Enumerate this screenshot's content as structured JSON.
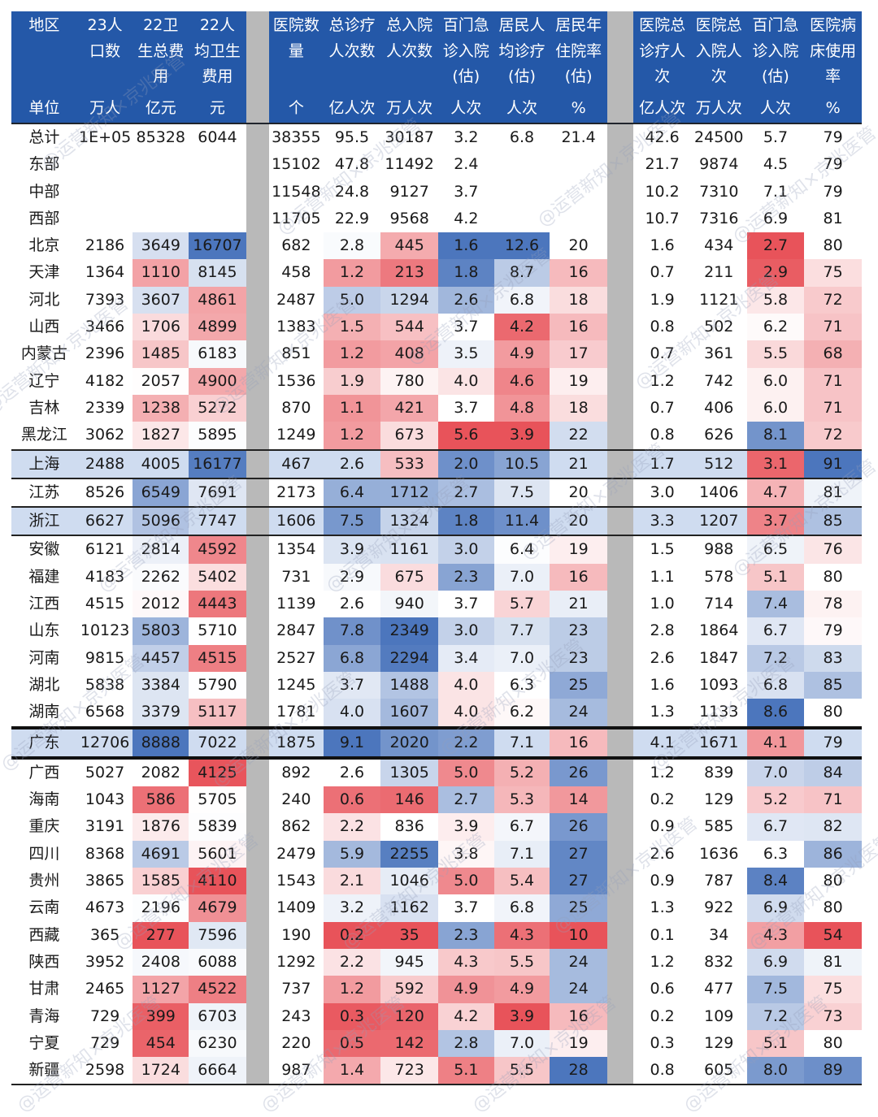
{
  "headers": [
    {
      "label": "地区",
      "unit": "单位"
    },
    {
      "label": "23人口数",
      "unit": "万人"
    },
    {
      "label": "22卫生总费用",
      "unit": "亿元"
    },
    {
      "label": "22人均卫生费用",
      "unit": "元"
    },
    {
      "label": "",
      "unit": ""
    },
    {
      "label": "医院数量",
      "unit": "个"
    },
    {
      "label": "总诊疗人次数",
      "unit": "亿人次"
    },
    {
      "label": "总入院人次数",
      "unit": "万人次"
    },
    {
      "label": "百门急诊入院(估)",
      "unit": "人次"
    },
    {
      "label": "居民人均诊疗(估)",
      "unit": "人次"
    },
    {
      "label": "居民年住院率(估)",
      "unit": "%"
    },
    {
      "label": "",
      "unit": ""
    },
    {
      "label": "医院总诊疗人次",
      "unit": "亿人次"
    },
    {
      "label": "医院总入院人次",
      "unit": "万人次"
    },
    {
      "label": "百门急诊入院(估)",
      "unit": "人次"
    },
    {
      "label": "医院病床使用率",
      "unit": "%"
    }
  ],
  "rows": [
    {
      "region": "总计",
      "v": [
        "1E+05",
        "85328",
        "6044",
        "38355",
        "95.5",
        "30187",
        "3.2",
        "6.8",
        "21.4",
        "42.6",
        "24500",
        "5.7",
        "79"
      ]
    },
    {
      "region": "东部",
      "v": [
        "",
        "",
        "",
        "15102",
        "47.8",
        "11492",
        "2.4",
        "",
        "",
        "21.7",
        "9874",
        "4.5",
        "79"
      ]
    },
    {
      "region": "中部",
      "v": [
        "",
        "",
        "",
        "11548",
        "24.8",
        "9127",
        "3.7",
        "",
        "",
        "10.2",
        "7310",
        "7.1",
        "79"
      ]
    },
    {
      "region": "西部",
      "v": [
        "",
        "",
        "",
        "11705",
        "22.9",
        "9568",
        "4.2",
        "",
        "",
        "10.7",
        "7316",
        "6.9",
        "81"
      ]
    },
    {
      "region": "北京",
      "v": [
        "2186",
        "3649",
        "16707",
        "682",
        "2.8",
        "445",
        "1.6",
        "12.6",
        "20",
        "1.6",
        "434",
        "2.7",
        "80"
      ]
    },
    {
      "region": "天津",
      "v": [
        "1364",
        "1110",
        "8145",
        "458",
        "1.2",
        "213",
        "1.8",
        "8.7",
        "16",
        "0.7",
        "211",
        "2.9",
        "75"
      ]
    },
    {
      "region": "河北",
      "v": [
        "7393",
        "3607",
        "4861",
        "2487",
        "5.0",
        "1294",
        "2.6",
        "6.8",
        "18",
        "1.9",
        "1121",
        "5.8",
        "72"
      ]
    },
    {
      "region": "山西",
      "v": [
        "3466",
        "1706",
        "4899",
        "1383",
        "1.5",
        "544",
        "3.7",
        "4.2",
        "16",
        "0.8",
        "502",
        "6.2",
        "71"
      ]
    },
    {
      "region": "内蒙古",
      "v": [
        "2396",
        "1485",
        "6183",
        "851",
        "1.2",
        "408",
        "3.5",
        "4.9",
        "17",
        "0.7",
        "361",
        "5.5",
        "68"
      ]
    },
    {
      "region": "辽宁",
      "v": [
        "4182",
        "2057",
        "4900",
        "1536",
        "1.9",
        "780",
        "4.0",
        "4.6",
        "19",
        "1.2",
        "742",
        "6.0",
        "71"
      ]
    },
    {
      "region": "吉林",
      "v": [
        "2339",
        "1238",
        "5272",
        "870",
        "1.1",
        "421",
        "3.7",
        "4.8",
        "18",
        "0.7",
        "406",
        "6.0",
        "71"
      ]
    },
    {
      "region": "黑龙江",
      "v": [
        "3062",
        "1827",
        "5895",
        "1249",
        "1.2",
        "673",
        "5.6",
        "3.9",
        "22",
        "0.8",
        "626",
        "8.1",
        "72"
      ]
    },
    {
      "region": "上海",
      "v": [
        "2488",
        "4005",
        "16177",
        "467",
        "2.6",
        "533",
        "2.0",
        "10.5",
        "21",
        "1.7",
        "512",
        "3.1",
        "91"
      ]
    },
    {
      "region": "江苏",
      "v": [
        "8526",
        "6549",
        "7691",
        "2173",
        "6.4",
        "1712",
        "2.7",
        "7.5",
        "20",
        "3.0",
        "1406",
        "4.7",
        "81"
      ]
    },
    {
      "region": "浙江",
      "v": [
        "6627",
        "5096",
        "7747",
        "1606",
        "7.5",
        "1324",
        "1.8",
        "11.4",
        "20",
        "3.3",
        "1207",
        "3.7",
        "85"
      ]
    },
    {
      "region": "安徽",
      "v": [
        "6121",
        "2814",
        "4592",
        "1354",
        "3.9",
        "1161",
        "3.0",
        "6.4",
        "19",
        "1.5",
        "988",
        "6.5",
        "76"
      ]
    },
    {
      "region": "福建",
      "v": [
        "4183",
        "2262",
        "5402",
        "731",
        "2.9",
        "675",
        "2.3",
        "7.0",
        "16",
        "1.1",
        "578",
        "5.1",
        "80"
      ]
    },
    {
      "region": "江西",
      "v": [
        "4515",
        "2012",
        "4443",
        "1139",
        "2.6",
        "940",
        "3.7",
        "5.7",
        "21",
        "1.0",
        "714",
        "7.4",
        "78"
      ]
    },
    {
      "region": "山东",
      "v": [
        "10123",
        "5803",
        "5710",
        "2847",
        "7.8",
        "2349",
        "3.0",
        "7.7",
        "23",
        "2.8",
        "1864",
        "6.7",
        "79"
      ]
    },
    {
      "region": "河南",
      "v": [
        "9815",
        "4457",
        "4515",
        "2527",
        "6.8",
        "2294",
        "3.4",
        "7.0",
        "23",
        "2.6",
        "1847",
        "7.2",
        "83"
      ]
    },
    {
      "region": "湖北",
      "v": [
        "5838",
        "3384",
        "5790",
        "1245",
        "3.7",
        "1488",
        "4.0",
        "6.3",
        "25",
        "1.6",
        "1093",
        "6.8",
        "85"
      ]
    },
    {
      "region": "湖南",
      "v": [
        "6568",
        "3379",
        "5117",
        "1781",
        "4.0",
        "1607",
        "4.0",
        "6.2",
        "24",
        "1.3",
        "1133",
        "8.6",
        "80"
      ]
    },
    {
      "region": "广东",
      "v": [
        "12706",
        "8888",
        "7022",
        "1875",
        "9.1",
        "2020",
        "2.2",
        "7.1",
        "16",
        "4.1",
        "1671",
        "4.1",
        "79"
      ]
    },
    {
      "region": "广西",
      "v": [
        "5027",
        "2082",
        "4125",
        "892",
        "2.6",
        "1305",
        "5.0",
        "5.2",
        "26",
        "1.2",
        "839",
        "7.0",
        "84"
      ]
    },
    {
      "region": "海南",
      "v": [
        "1043",
        "586",
        "5705",
        "240",
        "0.6",
        "146",
        "2.7",
        "5.3",
        "14",
        "0.2",
        "129",
        "5.2",
        "71"
      ]
    },
    {
      "region": "重庆",
      "v": [
        "3191",
        "1876",
        "5839",
        "862",
        "2.2",
        "836",
        "3.9",
        "6.7",
        "26",
        "0.9",
        "585",
        "6.7",
        "82"
      ]
    },
    {
      "region": "四川",
      "v": [
        "8368",
        "4691",
        "5601",
        "2479",
        "5.9",
        "2255",
        "3.8",
        "7.1",
        "27",
        "2.6",
        "1636",
        "6.3",
        "86"
      ]
    },
    {
      "region": "贵州",
      "v": [
        "3865",
        "1585",
        "4110",
        "1543",
        "2.1",
        "1046",
        "5.0",
        "5.4",
        "27",
        "0.9",
        "787",
        "8.4",
        "80"
      ]
    },
    {
      "region": "云南",
      "v": [
        "4673",
        "2196",
        "4679",
        "1409",
        "3.2",
        "1162",
        "3.7",
        "6.8",
        "25",
        "1.3",
        "922",
        "6.9",
        "80"
      ]
    },
    {
      "region": "西藏",
      "v": [
        "365",
        "277",
        "7596",
        "190",
        "0.2",
        "35",
        "2.3",
        "4.3",
        "10",
        "0.1",
        "34",
        "4.3",
        "54"
      ]
    },
    {
      "region": "陕西",
      "v": [
        "3952",
        "2408",
        "6088",
        "1292",
        "2.2",
        "945",
        "4.3",
        "5.5",
        "24",
        "1.2",
        "832",
        "6.9",
        "81"
      ]
    },
    {
      "region": "甘肃",
      "v": [
        "2465",
        "1127",
        "4522",
        "737",
        "1.2",
        "592",
        "4.9",
        "4.9",
        "24",
        "0.6",
        "477",
        "7.5",
        "75"
      ]
    },
    {
      "region": "青海",
      "v": [
        "729",
        "399",
        "6703",
        "243",
        "0.3",
        "120",
        "4.2",
        "3.9",
        "16",
        "0.2",
        "109",
        "7.2",
        "73"
      ]
    },
    {
      "region": "宁夏",
      "v": [
        "729",
        "454",
        "6230",
        "220",
        "0.5",
        "142",
        "2.8",
        "7.0",
        "19",
        "0.3",
        "129",
        "5.1",
        "80"
      ]
    },
    {
      "region": "新疆",
      "v": [
        "2598",
        "1724",
        "6664",
        "987",
        "1.4",
        "723",
        "5.1",
        "5.5",
        "28",
        "0.8",
        "605",
        "8.0",
        "89"
      ]
    }
  ],
  "highlight_rows": [
    "上海",
    "浙江",
    "广东"
  ],
  "heat_colors": {
    "low": "#e8535a",
    "mid": "#ffffff",
    "high": "#4c76bd"
  },
  "watermark": "@运营新知×京兆医管"
}
